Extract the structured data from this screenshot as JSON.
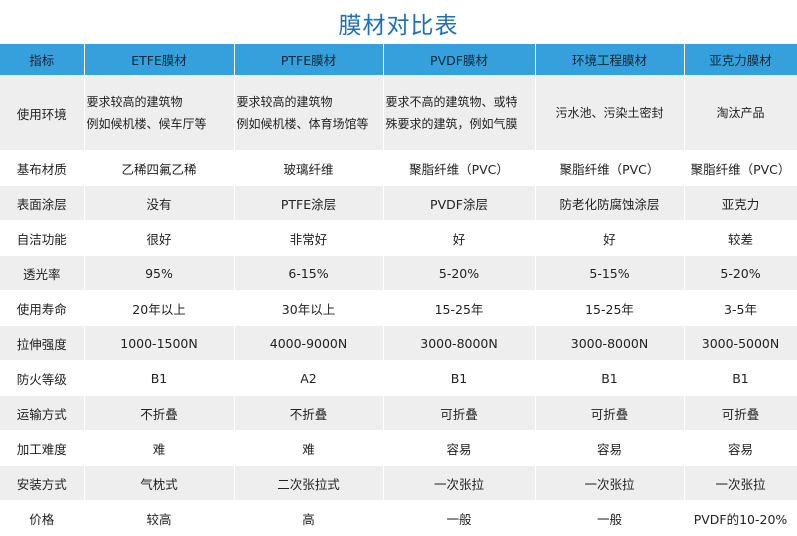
{
  "title": "膜材对比表",
  "headers": [
    "指标",
    "ETFE膜材",
    "PTFE膜材",
    "PVDF膜材",
    "环境工程膜材",
    "亚克力膜材"
  ],
  "env_row": {
    "label": "使用环境",
    "cells": [
      [
        "要求较高的建筑物",
        "例如候机楼、候车厅等"
      ],
      [
        "要求较高的建筑物",
        "例如候机楼、体育场馆等"
      ],
      [
        "要求不高的建筑物、或特",
        "殊要求的建筑，例如气膜"
      ],
      [
        "污水池、污染土密封"
      ],
      [
        "淘汰产品"
      ]
    ]
  },
  "rows": [
    {
      "label": "基布材质",
      "cells": [
        "乙稀四氟乙稀",
        "玻璃纤维",
        "聚脂纤维（PVC）",
        "聚脂纤维（PVC）",
        "聚脂纤维（PVC）"
      ]
    },
    {
      "label": "表面涂层",
      "cells": [
        "没有",
        "PTFE涂层",
        "PVDF涂层",
        "防老化防腐蚀涂层",
        "亚克力"
      ]
    },
    {
      "label": "自洁功能",
      "cells": [
        "很好",
        "非常好",
        "好",
        "好",
        "较差"
      ]
    },
    {
      "label": "透光率",
      "cells": [
        "95%",
        "6-15%",
        "5-20%",
        "5-15%",
        "5-20%"
      ]
    },
    {
      "label": "使用寿命",
      "cells": [
        "20年以上",
        "30年以上",
        "15-25年",
        "15-25年",
        "3-5年"
      ]
    },
    {
      "label": "拉伸强度",
      "cells": [
        "1000-1500N",
        "4000-9000N",
        "3000-8000N",
        "3000-8000N",
        "3000-5000N"
      ]
    },
    {
      "label": "防火等级",
      "cells": [
        "B1",
        "A2",
        "B1",
        "B1",
        "B1"
      ]
    },
    {
      "label": "运输方式",
      "cells": [
        "不折叠",
        "不折叠",
        "可折叠",
        "可折叠",
        "可折叠"
      ]
    },
    {
      "label": "加工难度",
      "cells": [
        "难",
        "难",
        "容易",
        "容易",
        "容易"
      ]
    },
    {
      "label": "安装方式",
      "cells": [
        "气枕式",
        "二次张拉式",
        "一次张拉",
        "一次张拉",
        "一次张拉"
      ]
    },
    {
      "label": "价格",
      "cells": [
        "较高",
        "高",
        "一般",
        "一般",
        "PVDF的10-20%"
      ]
    }
  ],
  "colors": {
    "title": "#1f6fb5",
    "header_bg": "#35a0db",
    "row_alt": "#eeeeee"
  }
}
